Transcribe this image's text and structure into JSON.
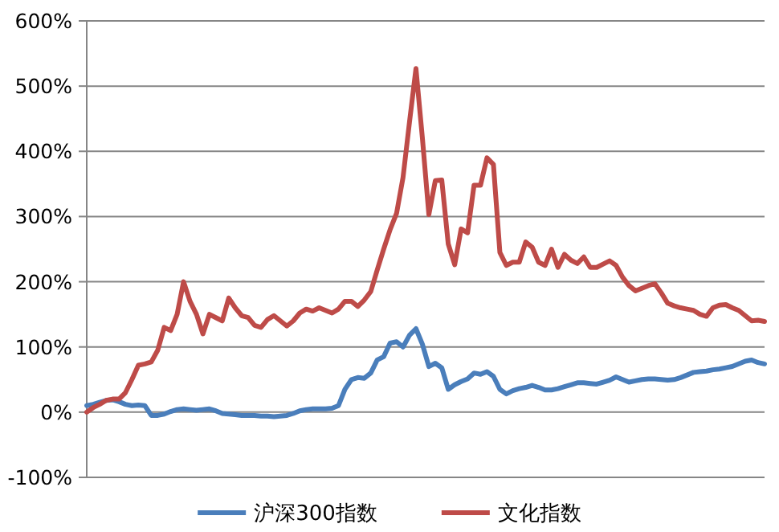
{
  "chart_data": {
    "type": "line",
    "categories": [
      null,
      null,
      null,
      null,
      null,
      null,
      null,
      null,
      null,
      null,
      null,
      null,
      null,
      null,
      null,
      null,
      null,
      null,
      null,
      null,
      null,
      null,
      null,
      null,
      null,
      null,
      null,
      null,
      null,
      null,
      null,
      null,
      null,
      null,
      null,
      null,
      null,
      null,
      null,
      null,
      null,
      null,
      null,
      null,
      null,
      null,
      null,
      null,
      null,
      null,
      null,
      null,
      null,
      null,
      null,
      null,
      null,
      null,
      null,
      null,
      null,
      null,
      null,
      null,
      null,
      null,
      null,
      null,
      null,
      null,
      null,
      null,
      null,
      null,
      null,
      null,
      null,
      null,
      null,
      null,
      null,
      null,
      null,
      null,
      null,
      null,
      null,
      null,
      null,
      null,
      null,
      null,
      null,
      null,
      null,
      null,
      null,
      null,
      null,
      null,
      null,
      null,
      null,
      null,
      null,
      null
    ],
    "ylim": [
      -100,
      600
    ],
    "yticks": [
      {
        "value": -100,
        "label": "-100%"
      },
      {
        "value": 0,
        "label": "0%"
      },
      {
        "value": 100,
        "label": "100%"
      },
      {
        "value": 200,
        "label": "200%"
      },
      {
        "value": 300,
        "label": "300%"
      },
      {
        "value": 400,
        "label": "400%"
      },
      {
        "value": 500,
        "label": "500%"
      },
      {
        "value": 600,
        "label": "600%"
      }
    ],
    "tick_labels": "y",
    "grid": "y",
    "legend": "bottom",
    "marker": "none",
    "line_style": "solid",
    "series": [
      {
        "name": "沪深300指数",
        "color": "#4a7ebb",
        "values": [
          10,
          12,
          15,
          18,
          19,
          16,
          12,
          10,
          11,
          10,
          -5,
          -5,
          -3,
          1,
          4,
          5,
          4,
          3,
          4,
          5,
          2,
          -2,
          -3,
          -4,
          -5,
          -5,
          -5,
          -6,
          -6,
          -7,
          -6,
          -5,
          -2,
          2,
          4,
          5,
          5,
          5,
          6,
          10,
          35,
          50,
          53,
          52,
          60,
          80,
          85,
          106,
          108,
          100,
          118,
          128,
          104,
          70,
          75,
          68,
          35,
          42,
          47,
          51,
          60,
          58,
          62,
          55,
          35,
          28,
          33,
          36,
          38,
          41,
          38,
          34,
          34,
          36,
          39,
          42,
          45,
          45,
          44,
          43,
          46,
          49,
          54,
          50,
          46,
          48,
          50,
          51,
          51,
          50,
          49,
          50,
          53,
          57,
          61,
          62,
          63,
          65,
          66,
          68,
          70,
          74,
          78,
          80,
          76,
          74
        ]
      },
      {
        "name": "文化指数",
        "color": "#be4b48",
        "values": [
          0,
          7,
          12,
          18,
          20,
          20,
          30,
          50,
          72,
          74,
          77,
          95,
          130,
          125,
          150,
          200,
          170,
          150,
          120,
          150,
          145,
          140,
          175,
          160,
          148,
          145,
          133,
          130,
          142,
          148,
          140,
          132,
          140,
          152,
          158,
          155,
          160,
          156,
          152,
          158,
          170,
          170,
          162,
          172,
          185,
          218,
          250,
          280,
          305,
          360,
          445,
          527,
          420,
          303,
          355,
          356,
          258,
          226,
          281,
          275,
          348,
          348,
          390,
          380,
          245,
          225,
          230,
          230,
          261,
          253,
          230,
          225,
          250,
          222,
          242,
          233,
          228,
          238,
          222,
          222,
          227,
          232,
          225,
          207,
          194,
          186,
          190,
          194,
          197,
          183,
          167,
          163,
          160,
          158,
          156,
          150,
          147,
          160,
          164,
          165,
          160,
          156,
          148,
          140,
          141,
          139
        ]
      }
    ]
  }
}
